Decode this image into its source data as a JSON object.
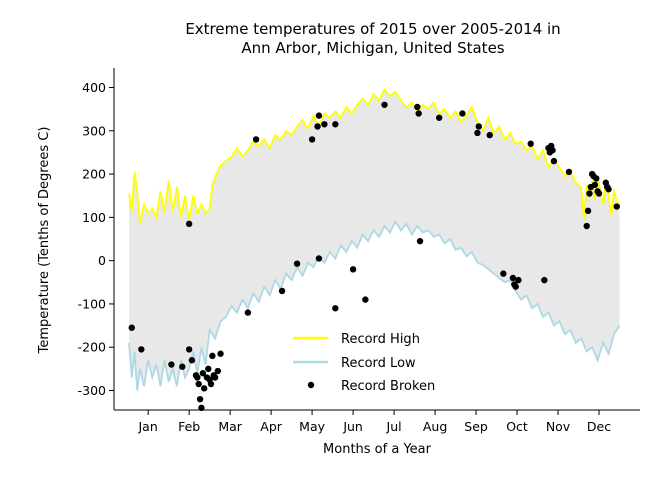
{
  "chart_data": {
    "type": "line",
    "title_line1": "Extreme temperatures of 2015 over 2005-2014 in",
    "title_line2": "Ann Arbor, Michigan, United States",
    "xlabel": "Months of a Year",
    "ylabel": "Temperature (Tenths of Degrees C)",
    "ylim": [
      -345,
      445
    ],
    "xlim": [
      -10,
      375
    ],
    "yticks": [
      400,
      300,
      200,
      100,
      0,
      -100,
      -200,
      -300
    ],
    "xticks": [
      {
        "label": "Jan",
        "x": 15
      },
      {
        "label": "Feb",
        "x": 45
      },
      {
        "label": "Mar",
        "x": 75
      },
      {
        "label": "Apr",
        "x": 105
      },
      {
        "label": "May",
        "x": 135
      },
      {
        "label": "Jun",
        "x": 165
      },
      {
        "label": "Jul",
        "x": 195
      },
      {
        "label": "Aug",
        "x": 225
      },
      {
        "label": "Sep",
        "x": 255
      },
      {
        "label": "Oct",
        "x": 285
      },
      {
        "label": "Nov",
        "x": 315
      },
      {
        "label": "Dec",
        "x": 345
      }
    ],
    "colors": {
      "high": "#ffff00",
      "low": "#add8e6",
      "fill": "#e8e8e8",
      "broken": "#000000"
    },
    "series": [
      {
        "name": "Record High",
        "anchors": [
          [
            1,
            155
          ],
          [
            3,
            115
          ],
          [
            5,
            205
          ],
          [
            7,
            160
          ],
          [
            9,
            85
          ],
          [
            12,
            130
          ],
          [
            15,
            110
          ],
          [
            18,
            120
          ],
          [
            21,
            100
          ],
          [
            24,
            160
          ],
          [
            27,
            110
          ],
          [
            30,
            185
          ],
          [
            33,
            115
          ],
          [
            36,
            170
          ],
          [
            39,
            100
          ],
          [
            42,
            150
          ],
          [
            45,
            95
          ],
          [
            48,
            150
          ],
          [
            51,
            110
          ],
          [
            54,
            130
          ],
          [
            57,
            110
          ],
          [
            60,
            120
          ],
          [
            62,
            175
          ],
          [
            65,
            200
          ],
          [
            68,
            220
          ],
          [
            72,
            230
          ],
          [
            76,
            240
          ],
          [
            80,
            260
          ],
          [
            84,
            240
          ],
          [
            88,
            255
          ],
          [
            92,
            275
          ],
          [
            96,
            265
          ],
          [
            100,
            280
          ],
          [
            104,
            260
          ],
          [
            108,
            290
          ],
          [
            112,
            280
          ],
          [
            116,
            300
          ],
          [
            120,
            290
          ],
          [
            124,
            310
          ],
          [
            128,
            325
          ],
          [
            132,
            305
          ],
          [
            136,
            335
          ],
          [
            140,
            310
          ],
          [
            144,
            340
          ],
          [
            148,
            330
          ],
          [
            152,
            345
          ],
          [
            156,
            330
          ],
          [
            160,
            355
          ],
          [
            164,
            340
          ],
          [
            168,
            360
          ],
          [
            172,
            375
          ],
          [
            176,
            360
          ],
          [
            180,
            385
          ],
          [
            184,
            370
          ],
          [
            188,
            395
          ],
          [
            192,
            380
          ],
          [
            196,
            390
          ],
          [
            200,
            370
          ],
          [
            204,
            355
          ],
          [
            208,
            365
          ],
          [
            212,
            345
          ],
          [
            216,
            360
          ],
          [
            220,
            350
          ],
          [
            224,
            365
          ],
          [
            228,
            340
          ],
          [
            232,
            350
          ],
          [
            236,
            330
          ],
          [
            240,
            345
          ],
          [
            244,
            320
          ],
          [
            248,
            335
          ],
          [
            252,
            355
          ],
          [
            256,
            320
          ],
          [
            260,
            300
          ],
          [
            264,
            330
          ],
          [
            268,
            295
          ],
          [
            272,
            310
          ],
          [
            276,
            280
          ],
          [
            280,
            295
          ],
          [
            284,
            270
          ],
          [
            288,
            275
          ],
          [
            292,
            255
          ],
          [
            296,
            265
          ],
          [
            300,
            235
          ],
          [
            304,
            255
          ],
          [
            308,
            215
          ],
          [
            312,
            235
          ],
          [
            316,
            215
          ],
          [
            320,
            195
          ],
          [
            324,
            205
          ],
          [
            328,
            180
          ],
          [
            332,
            170
          ],
          [
            334,
            95
          ],
          [
            336,
            175
          ],
          [
            338,
            145
          ],
          [
            340,
            185
          ],
          [
            342,
            140
          ],
          [
            344,
            195
          ],
          [
            346,
            160
          ],
          [
            348,
            130
          ],
          [
            350,
            185
          ],
          [
            352,
            150
          ],
          [
            354,
            105
          ],
          [
            356,
            165
          ],
          [
            358,
            130
          ],
          [
            360,
            135
          ]
        ]
      },
      {
        "name": "Record Low",
        "anchors": [
          [
            1,
            -190
          ],
          [
            3,
            -270
          ],
          [
            5,
            -210
          ],
          [
            7,
            -300
          ],
          [
            9,
            -250
          ],
          [
            12,
            -290
          ],
          [
            15,
            -230
          ],
          [
            18,
            -270
          ],
          [
            21,
            -240
          ],
          [
            24,
            -290
          ],
          [
            27,
            -230
          ],
          [
            30,
            -280
          ],
          [
            33,
            -250
          ],
          [
            36,
            -290
          ],
          [
            39,
            -230
          ],
          [
            42,
            -270
          ],
          [
            45,
            -250
          ],
          [
            48,
            -210
          ],
          [
            51,
            -260
          ],
          [
            54,
            -200
          ],
          [
            57,
            -240
          ],
          [
            60,
            -160
          ],
          [
            64,
            -180
          ],
          [
            68,
            -140
          ],
          [
            72,
            -130
          ],
          [
            76,
            -105
          ],
          [
            80,
            -120
          ],
          [
            84,
            -90
          ],
          [
            88,
            -110
          ],
          [
            92,
            -75
          ],
          [
            96,
            -95
          ],
          [
            100,
            -60
          ],
          [
            104,
            -80
          ],
          [
            108,
            -45
          ],
          [
            112,
            -65
          ],
          [
            116,
            -30
          ],
          [
            120,
            -45
          ],
          [
            124,
            -15
          ],
          [
            128,
            -35
          ],
          [
            132,
            -5
          ],
          [
            136,
            -15
          ],
          [
            140,
            10
          ],
          [
            144,
            -5
          ],
          [
            148,
            20
          ],
          [
            152,
            5
          ],
          [
            156,
            35
          ],
          [
            160,
            20
          ],
          [
            164,
            45
          ],
          [
            168,
            30
          ],
          [
            172,
            60
          ],
          [
            176,
            45
          ],
          [
            180,
            70
          ],
          [
            184,
            55
          ],
          [
            188,
            80
          ],
          [
            192,
            65
          ],
          [
            196,
            90
          ],
          [
            200,
            70
          ],
          [
            204,
            85
          ],
          [
            208,
            60
          ],
          [
            212,
            80
          ],
          [
            216,
            65
          ],
          [
            220,
            70
          ],
          [
            224,
            55
          ],
          [
            228,
            60
          ],
          [
            232,
            40
          ],
          [
            236,
            50
          ],
          [
            240,
            25
          ],
          [
            244,
            30
          ],
          [
            248,
            10
          ],
          [
            252,
            20
          ],
          [
            256,
            -5
          ],
          [
            260,
            -10
          ],
          [
            264,
            -20
          ],
          [
            268,
            -30
          ],
          [
            272,
            -40
          ],
          [
            276,
            -50
          ],
          [
            280,
            -45
          ],
          [
            284,
            -70
          ],
          [
            288,
            -90
          ],
          [
            292,
            -80
          ],
          [
            296,
            -110
          ],
          [
            300,
            -100
          ],
          [
            304,
            -130
          ],
          [
            308,
            -120
          ],
          [
            312,
            -150
          ],
          [
            316,
            -140
          ],
          [
            320,
            -170
          ],
          [
            324,
            -160
          ],
          [
            328,
            -190
          ],
          [
            332,
            -180
          ],
          [
            336,
            -210
          ],
          [
            340,
            -200
          ],
          [
            344,
            -230
          ],
          [
            348,
            -190
          ],
          [
            352,
            -215
          ],
          [
            356,
            -170
          ],
          [
            360,
            -150
          ]
        ]
      }
    ],
    "broken_label": "Record Broken",
    "broken_points": [
      [
        3,
        -155
      ],
      [
        10,
        -205
      ],
      [
        45,
        85
      ],
      [
        32,
        -240
      ],
      [
        40,
        -245
      ],
      [
        45,
        -205
      ],
      [
        47,
        -230
      ],
      [
        50,
        -265
      ],
      [
        51,
        -270
      ],
      [
        52,
        -285
      ],
      [
        53,
        -320
      ],
      [
        54,
        -340
      ],
      [
        55,
        -260
      ],
      [
        56,
        -295
      ],
      [
        58,
        -270
      ],
      [
        59,
        -250
      ],
      [
        60,
        -275
      ],
      [
        61,
        -285
      ],
      [
        62,
        -220
      ],
      [
        63,
        -265
      ],
      [
        64,
        -270
      ],
      [
        66,
        -255
      ],
      [
        68,
        -215
      ],
      [
        88,
        -120
      ],
      [
        113,
        -70
      ],
      [
        124,
        -7
      ],
      [
        140,
        5
      ],
      [
        165,
        -20
      ],
      [
        214,
        45
      ],
      [
        174,
        -90
      ],
      [
        152,
        -110
      ],
      [
        283,
        -55
      ],
      [
        284,
        -60
      ],
      [
        286,
        -45
      ],
      [
        305,
        -45
      ],
      [
        139,
        310
      ],
      [
        140,
        335
      ],
      [
        144,
        315
      ],
      [
        152,
        315
      ],
      [
        188,
        360
      ],
      [
        212,
        355
      ],
      [
        213,
        340
      ],
      [
        228,
        330
      ],
      [
        245,
        340
      ],
      [
        256,
        295
      ],
      [
        257,
        310
      ],
      [
        265,
        290
      ],
      [
        295,
        270
      ],
      [
        308,
        260
      ],
      [
        309,
        250
      ],
      [
        310,
        265
      ],
      [
        311,
        255
      ],
      [
        312,
        230
      ],
      [
        323,
        205
      ],
      [
        336,
        80
      ],
      [
        337,
        115
      ],
      [
        338,
        155
      ],
      [
        339,
        170
      ],
      [
        340,
        200
      ],
      [
        341,
        195
      ],
      [
        342,
        175
      ],
      [
        343,
        190
      ],
      [
        344,
        160
      ],
      [
        345,
        155
      ],
      [
        350,
        180
      ],
      [
        351,
        170
      ],
      [
        352,
        165
      ],
      [
        358,
        125
      ],
      [
        135,
        280
      ],
      [
        94,
        280
      ],
      [
        275,
        -30
      ],
      [
        282,
        -40
      ]
    ],
    "legend_position": "lower center"
  }
}
